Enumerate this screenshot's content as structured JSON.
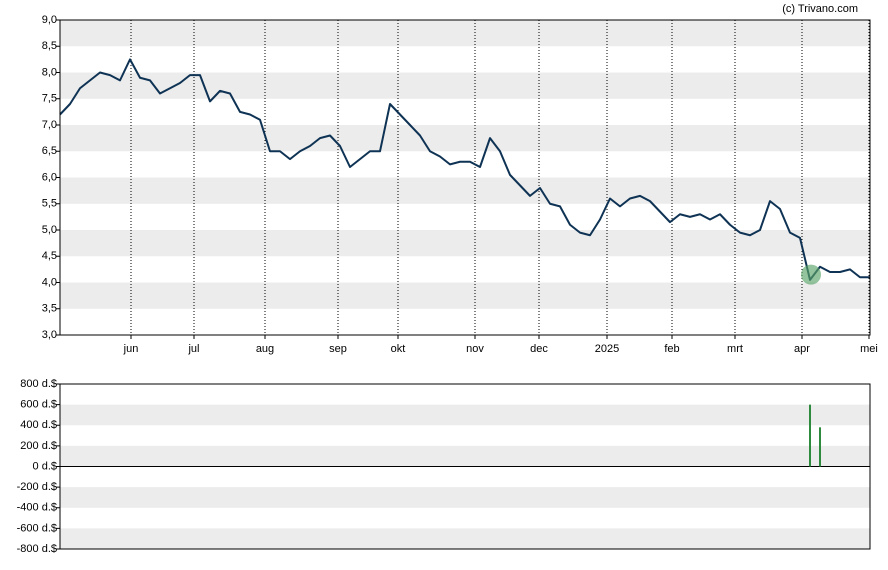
{
  "source": "(c) Trivano.com",
  "chart_data": [
    {
      "type": "line",
      "color": "#0f3354",
      "xlim": [
        0,
        81
      ],
      "xticks": [
        {
          "value": 7.1,
          "label": "jun"
        },
        {
          "value": 13.4,
          "label": "jul"
        },
        {
          "value": 20.5,
          "label": "aug"
        },
        {
          "value": 27.8,
          "label": "sep"
        },
        {
          "value": 33.8,
          "label": "okt"
        },
        {
          "value": 41.5,
          "label": "nov"
        },
        {
          "value": 47.9,
          "label": "dec"
        },
        {
          "value": 54.7,
          "label": "2025"
        },
        {
          "value": 61.2,
          "label": "feb"
        },
        {
          "value": 67.5,
          "label": "mrt"
        },
        {
          "value": 74.2,
          "label": "apr"
        },
        {
          "value": 80.9,
          "label": "mei"
        }
      ],
      "ylim": [
        3.0,
        9.0
      ],
      "yticks": [
        {
          "value": 3.0,
          "label": "3,0"
        },
        {
          "value": 3.5,
          "label": "3,5"
        },
        {
          "value": 4.0,
          "label": "4,0"
        },
        {
          "value": 4.5,
          "label": "4,5"
        },
        {
          "value": 5.0,
          "label": "5,0"
        },
        {
          "value": 5.5,
          "label": "5,5"
        },
        {
          "value": 6.0,
          "label": "6,0"
        },
        {
          "value": 6.5,
          "label": "6,5"
        },
        {
          "value": 7.0,
          "label": "7,0"
        },
        {
          "value": 7.5,
          "label": "7,5"
        },
        {
          "value": 8.0,
          "label": "8,0"
        },
        {
          "value": 8.5,
          "label": "8,5"
        },
        {
          "value": 9.0,
          "label": "9,0"
        }
      ],
      "values": [
        7.2,
        7.4,
        7.7,
        7.85,
        8.0,
        7.95,
        7.85,
        8.25,
        7.9,
        7.85,
        7.6,
        7.7,
        7.8,
        7.95,
        7.95,
        7.45,
        7.65,
        7.6,
        7.25,
        7.2,
        7.1,
        6.5,
        6.5,
        6.35,
        6.5,
        6.6,
        6.75,
        6.8,
        6.6,
        6.2,
        6.35,
        6.5,
        6.5,
        7.4,
        7.2,
        7.0,
        6.8,
        6.5,
        6.4,
        6.25,
        6.3,
        6.3,
        6.2,
        6.75,
        6.5,
        6.05,
        5.85,
        5.65,
        5.8,
        5.5,
        5.45,
        5.1,
        4.95,
        4.9,
        5.2,
        5.6,
        5.45,
        5.6,
        5.65,
        5.55,
        5.35,
        5.15,
        5.3,
        5.25,
        5.3,
        5.2,
        5.3,
        5.1,
        4.95,
        4.9,
        5.0,
        5.55,
        5.4,
        4.95,
        4.85,
        4.05,
        4.3,
        4.2,
        4.2,
        4.25,
        4.1,
        4.1
      ],
      "markers": [
        {
          "x": 75.1,
          "y": 4.15,
          "color": "#5aa469"
        }
      ]
    },
    {
      "type": "bar",
      "color": "#2e8b3e",
      "xlim": [
        0,
        81
      ],
      "ylim": [
        -800,
        800
      ],
      "yticks": [
        {
          "value": -800,
          "label": "-800 d.$"
        },
        {
          "value": -600,
          "label": "-600 d.$"
        },
        {
          "value": -400,
          "label": "-400 d.$"
        },
        {
          "value": -200,
          "label": "-200 d.$"
        },
        {
          "value": 0,
          "label": "0 d.$"
        },
        {
          "value": 200,
          "label": "200 d.$"
        },
        {
          "value": 400,
          "label": "400 d.$"
        },
        {
          "value": 600,
          "label": "600 d.$"
        },
        {
          "value": 800,
          "label": "800 d.$"
        }
      ],
      "x": [
        75,
        76
      ],
      "values": [
        600,
        380
      ]
    }
  ]
}
